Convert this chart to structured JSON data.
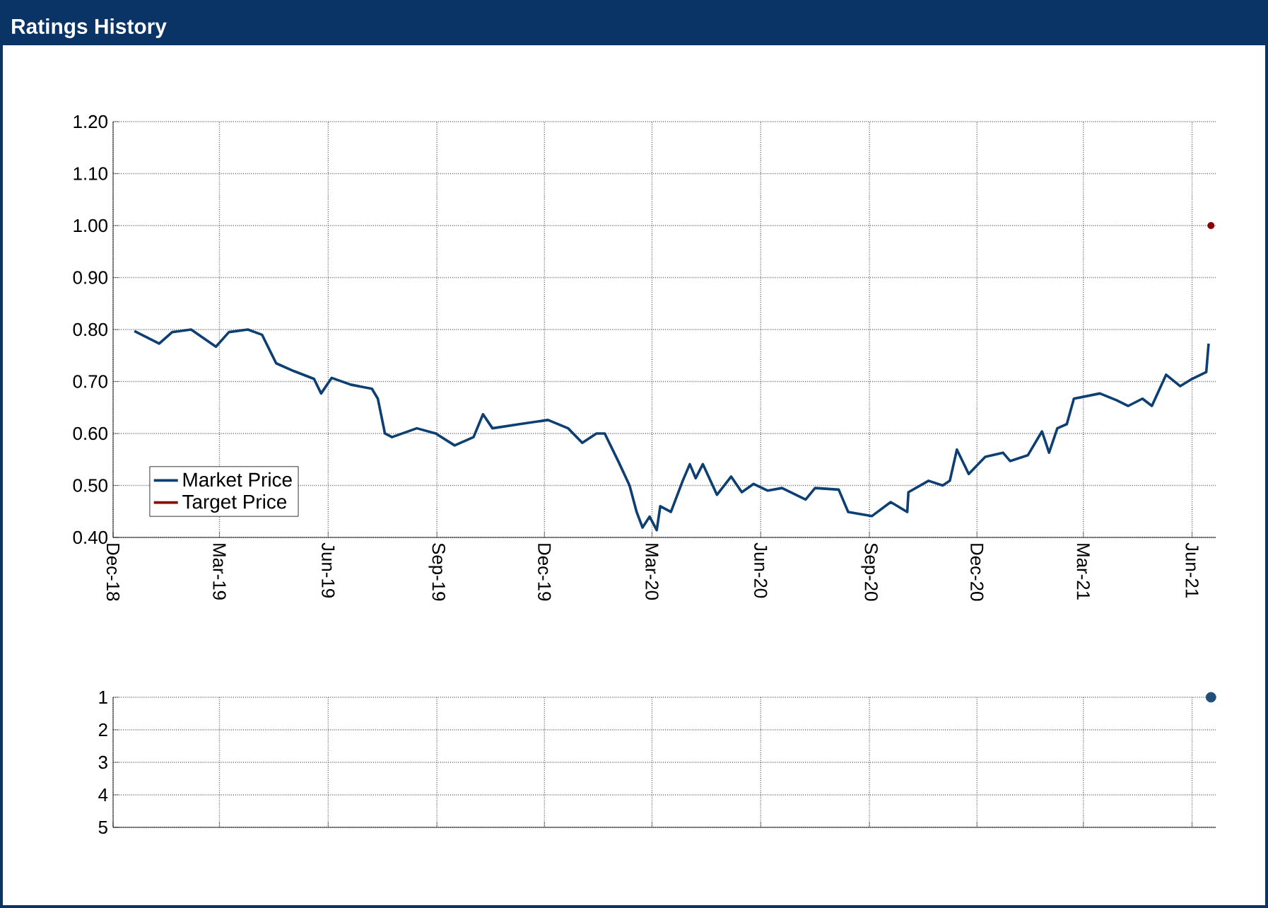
{
  "chart_data": [
    {
      "type": "line",
      "title": "Ratings History",
      "xlim": [
        "2018-12-01",
        "2021-06-21"
      ],
      "xticks": [
        {
          "value": "2018-12",
          "label": "Dec-18"
        },
        {
          "value": "2019-03",
          "label": "Mar-19"
        },
        {
          "value": "2019-06",
          "label": "Jun-19"
        },
        {
          "value": "2019-09",
          "label": "Sep-19"
        },
        {
          "value": "2019-12",
          "label": "Dec-19"
        },
        {
          "value": "2020-03",
          "label": "Mar-20"
        },
        {
          "value": "2020-06",
          "label": "Jun-20"
        },
        {
          "value": "2020-09",
          "label": "Sep-20"
        },
        {
          "value": "2020-12",
          "label": "Dec-20"
        },
        {
          "value": "2021-03",
          "label": "Mar-21"
        },
        {
          "value": "2021-06",
          "label": "Jun-21"
        }
      ],
      "ylim": [
        0.4,
        1.2
      ],
      "yticks": [
        {
          "value": 0.4,
          "label": "0.40"
        },
        {
          "value": 0.5,
          "label": "0.50"
        },
        {
          "value": 0.6,
          "label": "0.60"
        },
        {
          "value": 0.7,
          "label": "0.70"
        },
        {
          "value": 0.8,
          "label": "0.80"
        },
        {
          "value": 0.9,
          "label": "0.90"
        },
        {
          "value": 1.0,
          "label": "1.00"
        },
        {
          "value": 1.1,
          "label": "1.10"
        },
        {
          "value": 1.2,
          "label": "1.20"
        }
      ],
      "grid": true,
      "legend": "bottom left",
      "series": [
        {
          "name": "Market Price",
          "color": "#0d3f73",
          "type": "line",
          "x": [
            "2018-12-19",
            "2019-01-09",
            "2019-01-20",
            "2019-02-05",
            "2019-02-26",
            "2019-03-09",
            "2019-03-25",
            "2019-04-06",
            "2019-04-18",
            "2019-05-03",
            "2019-05-20",
            "2019-05-26",
            "2019-06-04",
            "2019-06-20",
            "2019-07-08",
            "2019-07-13",
            "2019-07-19",
            "2019-07-25",
            "2019-08-15",
            "2019-08-31",
            "2019-09-16",
            "2019-10-02",
            "2019-10-10",
            "2019-10-18",
            "2019-11-10",
            "2019-12-04",
            "2019-12-21",
            "2020-01-02",
            "2020-01-14",
            "2020-01-21",
            "2020-02-02",
            "2020-02-11",
            "2020-02-17",
            "2020-02-22",
            "2020-02-28",
            "2020-03-05",
            "2020-03-08",
            "2020-03-17",
            "2020-03-27",
            "2020-04-02",
            "2020-04-07",
            "2020-04-13",
            "2020-04-25",
            "2020-05-07",
            "2020-05-16",
            "2020-05-26",
            "2020-06-07",
            "2020-06-19",
            "2020-07-09",
            "2020-07-17",
            "2020-08-06",
            "2020-08-14",
            "2020-09-03",
            "2020-09-19",
            "2020-10-03",
            "2020-10-04",
            "2020-10-21",
            "2020-11-02",
            "2020-11-08",
            "2020-11-14",
            "2020-11-24",
            "2020-12-08",
            "2020-12-23",
            "2020-12-29",
            "2021-01-13",
            "2021-01-25",
            "2021-01-31",
            "2021-02-07",
            "2021-02-15",
            "2021-02-21",
            "2021-03-15",
            "2021-03-29",
            "2021-04-08",
            "2021-04-20",
            "2021-04-28",
            "2021-05-10",
            "2021-05-22",
            "2021-06-01",
            "2021-06-13",
            "2021-06-15"
          ],
          "values": [
            0.797,
            0.773,
            0.795,
            0.8,
            0.767,
            0.795,
            0.8,
            0.79,
            0.735,
            0.72,
            0.705,
            0.677,
            0.707,
            0.694,
            0.686,
            0.667,
            0.6,
            0.593,
            0.61,
            0.6,
            0.577,
            0.593,
            0.637,
            0.61,
            0.618,
            0.626,
            0.61,
            0.582,
            0.6,
            0.6,
            0.544,
            0.5,
            0.449,
            0.419,
            0.44,
            0.414,
            0.46,
            0.449,
            0.509,
            0.541,
            0.514,
            0.541,
            0.482,
            0.517,
            0.487,
            0.503,
            0.49,
            0.495,
            0.473,
            0.495,
            0.492,
            0.449,
            0.441,
            0.468,
            0.449,
            0.487,
            0.509,
            0.5,
            0.509,
            0.569,
            0.522,
            0.555,
            0.563,
            0.547,
            0.558,
            0.604,
            0.563,
            0.61,
            0.618,
            0.667,
            0.677,
            0.664,
            0.653,
            0.667,
            0.653,
            0.713,
            0.691,
            0.705,
            0.718,
            0.773
          ]
        },
        {
          "name": "Target Price",
          "color": "#8b0000",
          "type": "line",
          "marker": "circle",
          "x": [
            "2021-06-17"
          ],
          "values": [
            1.0
          ]
        }
      ]
    },
    {
      "type": "scatter",
      "tick_labels": "y",
      "xlim": [
        "2018-12-01",
        "2021-06-21"
      ],
      "xticks": [
        {
          "value": "2018-12",
          "label": null
        },
        {
          "value": "2019-03",
          "label": null
        },
        {
          "value": "2019-06",
          "label": null
        },
        {
          "value": "2019-09",
          "label": null
        },
        {
          "value": "2019-12",
          "label": null
        },
        {
          "value": "2020-03",
          "label": null
        },
        {
          "value": "2020-06",
          "label": null
        },
        {
          "value": "2020-09",
          "label": null
        },
        {
          "value": "2020-12",
          "label": null
        },
        {
          "value": "2021-03",
          "label": null
        },
        {
          "value": "2021-06",
          "label": null
        }
      ],
      "ylim": [
        5,
        1
      ],
      "yticks": [
        1,
        2,
        3,
        4,
        5
      ],
      "grid": true,
      "marker": "circle",
      "series": [
        {
          "color": "#1f4e79",
          "x": [
            "2021-06-17"
          ],
          "values": [
            1
          ]
        }
      ]
    }
  ]
}
